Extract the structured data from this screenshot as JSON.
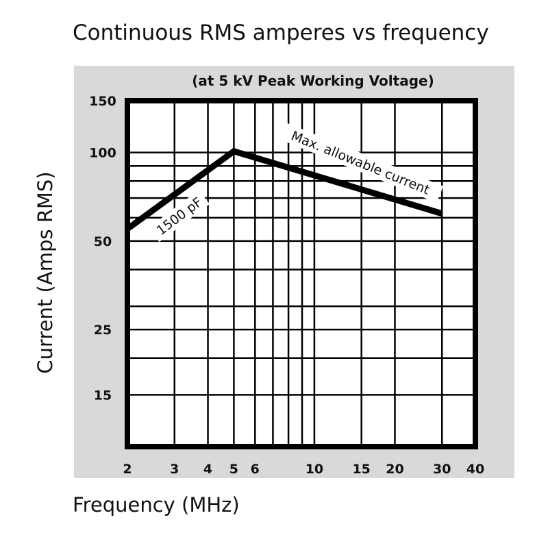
{
  "chart_data": {
    "type": "line",
    "title": "Continuous RMS amperes vs frequency",
    "subtitle": "(at 5 kV Peak Working Voltage)",
    "xlabel": "Frequency (MHz)",
    "ylabel": "Current (Amps RMS)",
    "x_scale": "log",
    "y_scale": "log",
    "xlim": [
      2,
      40
    ],
    "ylim": [
      10,
      150
    ],
    "x_ticks": [
      2,
      3,
      4,
      5,
      6,
      10,
      15,
      20,
      30,
      40
    ],
    "y_ticks": [
      15,
      25,
      50,
      100,
      150
    ],
    "x_gridlines": [
      2,
      3,
      4,
      5,
      6,
      7,
      8,
      9,
      10,
      15,
      20,
      30
    ],
    "y_gridlines": [
      15,
      20,
      25,
      30,
      40,
      50,
      60,
      70,
      80,
      90,
      100
    ],
    "grid": true,
    "series": [
      {
        "name": "",
        "x": [
          2,
          5,
          30
        ],
        "y": [
          55,
          101,
          62
        ]
      }
    ],
    "annotations": [
      "1500 pF",
      "Max. allowable current"
    ],
    "colors": {
      "panel": "#d9d9d9",
      "line": "#000000"
    }
  }
}
